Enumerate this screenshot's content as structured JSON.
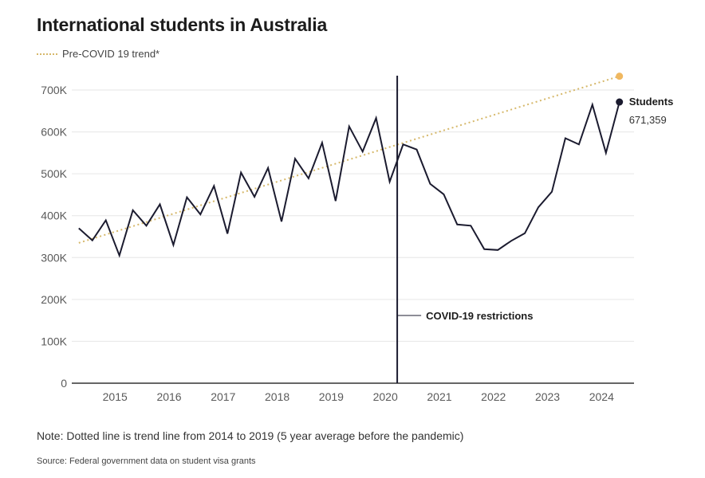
{
  "chart_data": {
    "type": "line",
    "title": "International students in Australia",
    "xlabel": "",
    "ylabel": "",
    "ylim": [
      0,
      700000
    ],
    "xlim": [
      2014.2,
      2024.6
    ],
    "y_ticks": [
      0,
      100000,
      200000,
      300000,
      400000,
      500000,
      600000,
      700000
    ],
    "y_tick_labels": [
      "0",
      "100K",
      "200K",
      "300K",
      "400K",
      "500K",
      "600K",
      "700K"
    ],
    "x_ticks": [
      2015,
      2016,
      2017,
      2018,
      2019,
      2020,
      2021,
      2022,
      2023,
      2024
    ],
    "x_tick_labels": [
      "2015",
      "2016",
      "2017",
      "2018",
      "2019",
      "2020",
      "2021",
      "2022",
      "2023",
      "2024"
    ],
    "grid": "horizontal",
    "legend_position": "top-left",
    "series": [
      {
        "name": "Students",
        "color": "#1b1b2f",
        "x": [
          2014.33,
          2014.58,
          2014.83,
          2015.08,
          2015.33,
          2015.58,
          2015.83,
          2016.08,
          2016.33,
          2016.58,
          2016.83,
          2017.08,
          2017.33,
          2017.58,
          2017.83,
          2018.08,
          2018.33,
          2018.58,
          2018.83,
          2019.08,
          2019.33,
          2019.58,
          2019.83,
          2020.08,
          2020.33,
          2020.58,
          2020.83,
          2021.08,
          2021.33,
          2021.58,
          2021.83,
          2022.08,
          2022.33,
          2022.58,
          2022.83,
          2023.08,
          2023.33,
          2023.58,
          2023.83,
          2024.08,
          2024.33
        ],
        "values": [
          370000,
          341000,
          389000,
          305000,
          413000,
          376000,
          427000,
          330000,
          444000,
          403000,
          471000,
          357000,
          503000,
          445000,
          514000,
          386000,
          536000,
          489000,
          574000,
          435000,
          613000,
          553000,
          633000,
          481000,
          570000,
          558000,
          476000,
          451000,
          379000,
          376000,
          320000,
          318000,
          340000,
          358000,
          420000,
          457000,
          585000,
          570000,
          665000,
          550000,
          671359
        ]
      },
      {
        "name": "Pre-COVID 19 trend*",
        "color": "#d6b86a",
        "style": "dotted",
        "x": [
          2014.33,
          2024.33
        ],
        "values": [
          335000,
          733000
        ]
      }
    ],
    "legend": [
      "Pre-COVID 19 trend*"
    ],
    "annotations": [
      {
        "x": 2020.22,
        "label": "COVID-19 restrictions",
        "type": "vertical-line"
      }
    ],
    "end_label": {
      "name": "Students",
      "value_text": "671,359"
    }
  },
  "note": "Note: Dotted line is trend line from 2014 to 2019 (5 year average before the pandemic)",
  "source": "Source: Federal government data on student visa grants"
}
